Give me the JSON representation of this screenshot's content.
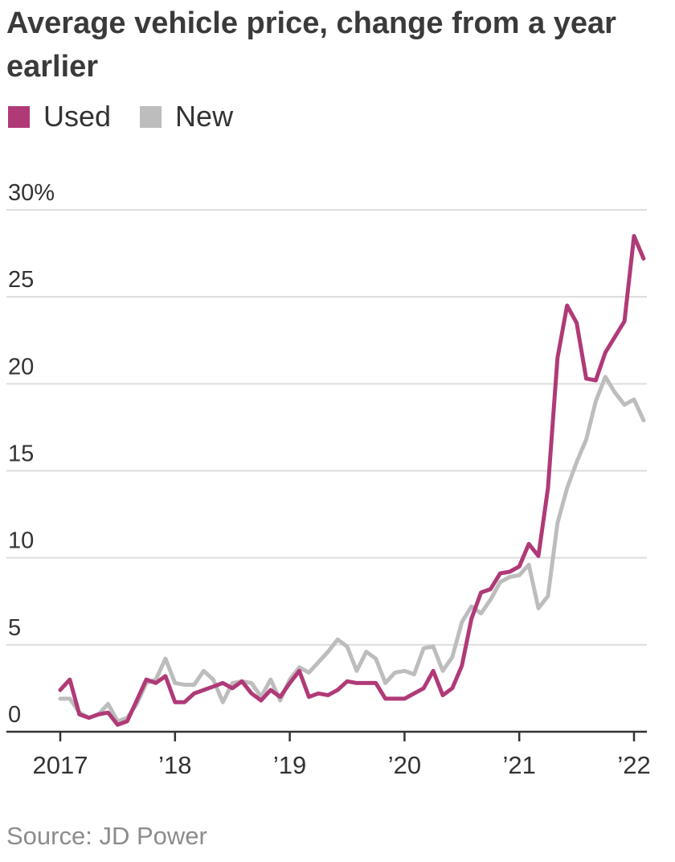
{
  "chart_data": {
    "type": "line",
    "title": "Average vehicle price, change from a year earlier",
    "source": "Source: JD Power",
    "y_unit_suffix": "%",
    "ylim": [
      0,
      30
    ],
    "y_ticks": [
      0,
      5,
      10,
      15,
      20,
      25,
      30
    ],
    "y_tick_labels": [
      "0",
      "5",
      "10",
      "15",
      "20",
      "25",
      "30%"
    ],
    "x_ticks": [
      2017,
      2018,
      2019,
      2020,
      2021,
      2022
    ],
    "x_tick_labels": [
      "2017",
      "’18",
      "’19",
      "’20",
      "’21",
      "’22"
    ],
    "xlim": [
      2017,
      2022.1
    ],
    "grid": true,
    "legend_position": "top-left",
    "x": [
      2017.0,
      2017.083,
      2017.167,
      2017.25,
      2017.333,
      2017.417,
      2017.5,
      2017.583,
      2017.667,
      2017.75,
      2017.833,
      2017.917,
      2018.0,
      2018.083,
      2018.167,
      2018.25,
      2018.333,
      2018.417,
      2018.5,
      2018.583,
      2018.667,
      2018.75,
      2018.833,
      2018.917,
      2019.0,
      2019.083,
      2019.167,
      2019.25,
      2019.333,
      2019.417,
      2019.5,
      2019.583,
      2019.667,
      2019.75,
      2019.833,
      2019.917,
      2020.0,
      2020.083,
      2020.167,
      2020.25,
      2020.333,
      2020.417,
      2020.5,
      2020.583,
      2020.667,
      2020.75,
      2020.833,
      2020.917,
      2021.0,
      2021.083,
      2021.167,
      2021.25,
      2021.333,
      2021.417,
      2021.5,
      2021.583,
      2021.667,
      2021.75,
      2021.833,
      2021.917,
      2022.0,
      2022.083
    ],
    "series": [
      {
        "name": "Used",
        "color": "#b03a78",
        "values": [
          2.4,
          3.0,
          1.0,
          0.8,
          1.0,
          1.1,
          0.4,
          0.6,
          1.8,
          3.0,
          2.8,
          3.2,
          1.7,
          1.7,
          2.2,
          2.4,
          2.6,
          2.8,
          2.5,
          2.9,
          2.2,
          1.8,
          2.4,
          2.0,
          2.8,
          3.5,
          2.0,
          2.2,
          2.1,
          2.4,
          2.9,
          2.8,
          2.8,
          2.8,
          1.9,
          1.9,
          1.9,
          2.2,
          2.5,
          3.5,
          2.1,
          2.5,
          3.8,
          6.5,
          8.0,
          8.2,
          9.1,
          9.2,
          9.5,
          10.8,
          10.1,
          14.0,
          21.5,
          24.5,
          23.5,
          20.3,
          20.2,
          21.8,
          22.7,
          23.6,
          28.5,
          27.2
        ]
      },
      {
        "name": "New",
        "color": "#bdbdbd",
        "values": [
          1.9,
          1.9,
          1.1,
          0.8,
          1.0,
          1.6,
          0.6,
          0.8,
          1.6,
          2.8,
          3.0,
          4.2,
          2.8,
          2.7,
          2.7,
          3.5,
          3.0,
          1.7,
          2.8,
          2.9,
          2.8,
          2.0,
          3.0,
          1.8,
          3.0,
          3.7,
          3.4,
          4.0,
          4.6,
          5.3,
          4.9,
          3.5,
          4.6,
          4.2,
          2.8,
          3.4,
          3.5,
          3.3,
          4.8,
          4.9,
          3.5,
          4.3,
          6.3,
          7.2,
          6.8,
          7.6,
          8.6,
          8.9,
          9.0,
          9.6,
          7.1,
          7.8,
          12.0,
          14.0,
          15.5,
          16.8,
          19.0,
          20.4,
          19.5,
          18.8,
          19.1,
          17.9
        ]
      }
    ]
  }
}
